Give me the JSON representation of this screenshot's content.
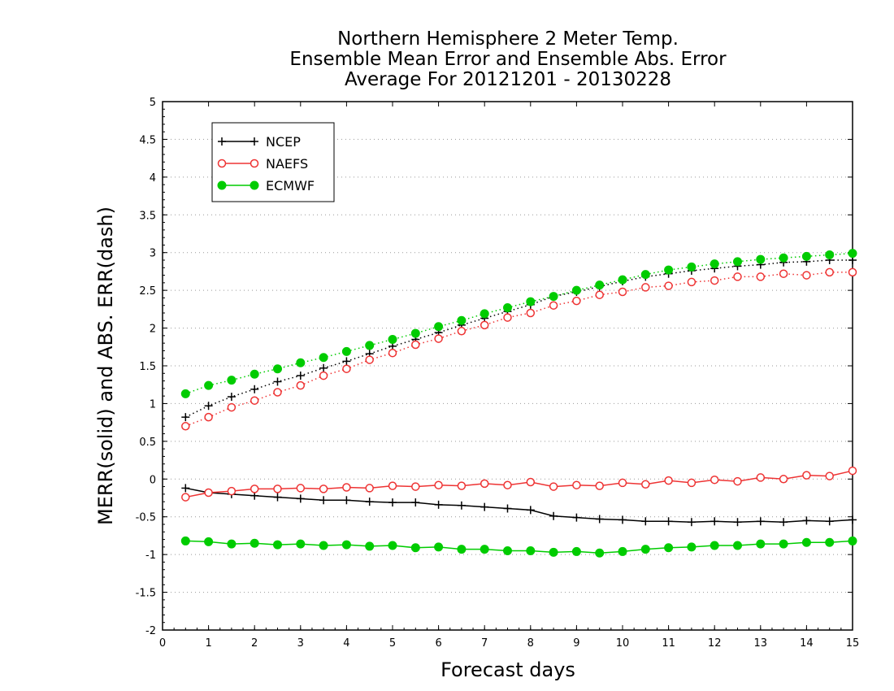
{
  "chart_data": {
    "type": "line",
    "title": [
      "Northern Hemisphere 2 Meter Temp.",
      "Ensemble Mean Error and Ensemble Abs. Error",
      "Average For 20121201 - 20130228"
    ],
    "xlabel": "Forecast days",
    "ylabel": "MERR(solid) and ABS. ERR(dash)",
    "xlim": [
      0,
      15
    ],
    "ylim": [
      -2,
      5
    ],
    "xticks": [
      0,
      1,
      2,
      3,
      4,
      5,
      6,
      7,
      8,
      9,
      10,
      11,
      12,
      13,
      14,
      15
    ],
    "yticks": [
      -2,
      -1.5,
      -1,
      -0.5,
      0,
      0.5,
      1,
      1.5,
      2,
      2.5,
      3,
      3.5,
      4,
      4.5,
      5
    ],
    "ytick_labels": [
      "-2",
      "-1.5",
      "-1",
      "-0.5",
      "0",
      "0.5",
      "1",
      "1.5",
      "2",
      "2.5",
      "3",
      "3.5",
      "4",
      "4.5",
      "5"
    ],
    "grid": "horizontal dotted",
    "legend_position": "top-left",
    "x": [
      0.5,
      1,
      1.5,
      2,
      2.5,
      3,
      3.5,
      4,
      4.5,
      5,
      5.5,
      6,
      6.5,
      7,
      7.5,
      8,
      8.5,
      9,
      9.5,
      10,
      10.5,
      11,
      11.5,
      12,
      12.5,
      13,
      13.5,
      14,
      14.5,
      15
    ],
    "series": [
      {
        "name": "NCEP",
        "color": "#000000",
        "marker": "plus",
        "merr": [
          -0.12,
          -0.18,
          -0.2,
          -0.22,
          -0.24,
          -0.26,
          -0.28,
          -0.28,
          -0.3,
          -0.31,
          -0.31,
          -0.34,
          -0.35,
          -0.37,
          -0.39,
          -0.41,
          -0.49,
          -0.51,
          -0.53,
          -0.54,
          -0.56,
          -0.56,
          -0.57,
          -0.56,
          -0.57,
          -0.56,
          -0.57,
          -0.55,
          -0.56,
          -0.54
        ],
        "abs_err": [
          0.82,
          0.97,
          1.09,
          1.19,
          1.29,
          1.37,
          1.47,
          1.56,
          1.66,
          1.76,
          1.85,
          1.94,
          2.04,
          2.13,
          2.22,
          2.31,
          2.42,
          2.48,
          2.55,
          2.62,
          2.68,
          2.72,
          2.76,
          2.79,
          2.82,
          2.84,
          2.87,
          2.88,
          2.9,
          2.9
        ]
      },
      {
        "name": "NAEFS",
        "color": "#ee3333",
        "marker": "open-circle",
        "merr": [
          -0.24,
          -0.18,
          -0.16,
          -0.13,
          -0.13,
          -0.12,
          -0.13,
          -0.11,
          -0.12,
          -0.09,
          -0.1,
          -0.08,
          -0.09,
          -0.06,
          -0.08,
          -0.04,
          -0.1,
          -0.08,
          -0.09,
          -0.05,
          -0.07,
          -0.02,
          -0.05,
          -0.01,
          -0.03,
          0.02,
          0.0,
          0.05,
          0.04,
          0.11
        ],
        "abs_err": [
          0.7,
          0.82,
          0.95,
          1.04,
          1.15,
          1.24,
          1.37,
          1.46,
          1.58,
          1.67,
          1.78,
          1.86,
          1.96,
          2.04,
          2.14,
          2.2,
          2.3,
          2.36,
          2.44,
          2.48,
          2.54,
          2.56,
          2.61,
          2.63,
          2.68,
          2.68,
          2.72,
          2.7,
          2.74,
          2.74
        ]
      },
      {
        "name": "ECMWF",
        "color": "#00cc00",
        "marker": "filled-circle",
        "merr": [
          -0.82,
          -0.83,
          -0.86,
          -0.85,
          -0.87,
          -0.86,
          -0.88,
          -0.87,
          -0.89,
          -0.88,
          -0.91,
          -0.9,
          -0.93,
          -0.93,
          -0.95,
          -0.95,
          -0.97,
          -0.96,
          -0.98,
          -0.96,
          -0.93,
          -0.91,
          -0.9,
          -0.88,
          -0.88,
          -0.86,
          -0.86,
          -0.84,
          -0.84,
          -0.82
        ],
        "abs_err": [
          1.13,
          1.24,
          1.31,
          1.39,
          1.46,
          1.54,
          1.61,
          1.69,
          1.77,
          1.85,
          1.93,
          2.02,
          2.1,
          2.19,
          2.27,
          2.35,
          2.42,
          2.5,
          2.57,
          2.64,
          2.71,
          2.77,
          2.81,
          2.85,
          2.88,
          2.91,
          2.93,
          2.95,
          2.97,
          2.99
        ]
      }
    ]
  }
}
